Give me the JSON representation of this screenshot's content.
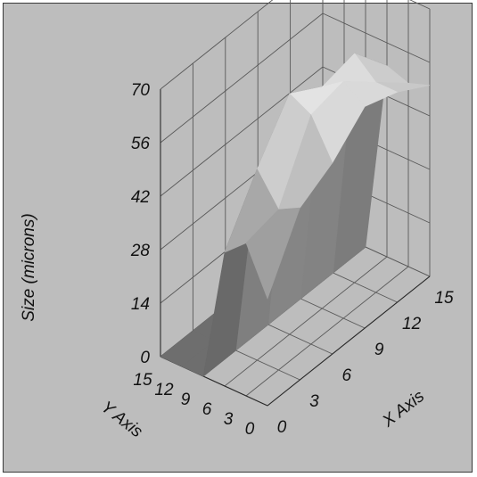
{
  "chart_data": {
    "type": "surface3d",
    "title": "",
    "xlabel": "X Axis",
    "ylabel": "Y Axis",
    "zlabel": "Size (microns)",
    "xlim": [
      0,
      15
    ],
    "ylim": [
      0,
      15
    ],
    "zlim": [
      0,
      70
    ],
    "x_ticks": [
      "0",
      "3",
      "6",
      "9",
      "12",
      "15"
    ],
    "y_ticks": [
      "0",
      "3",
      "6",
      "9",
      "12",
      "15"
    ],
    "z_ticks": [
      "0",
      "14",
      "28",
      "42",
      "56",
      "70"
    ],
    "grid": true,
    "surface": {
      "x": [
        0,
        3,
        6,
        9,
        12,
        15
      ],
      "y": [
        0,
        3,
        6,
        9,
        12,
        15
      ],
      "z": [
        [
          28,
          45,
          50,
          58,
          55,
          50
        ],
        [
          40,
          42,
          60,
          62,
          55,
          48
        ],
        [
          35,
          50,
          63,
          58,
          60,
          50
        ],
        [
          0,
          0,
          0,
          0,
          0,
          0
        ],
        [
          0,
          0,
          0,
          0,
          0,
          0
        ],
        [
          0,
          0,
          0,
          0,
          0,
          0
        ]
      ]
    }
  },
  "colors": {
    "background": "#bdbdbd",
    "grid": "#5a5a5a",
    "surface_high": "#ffffff",
    "surface_low": "#1e1e1e",
    "floor": "#6e6e6e"
  }
}
